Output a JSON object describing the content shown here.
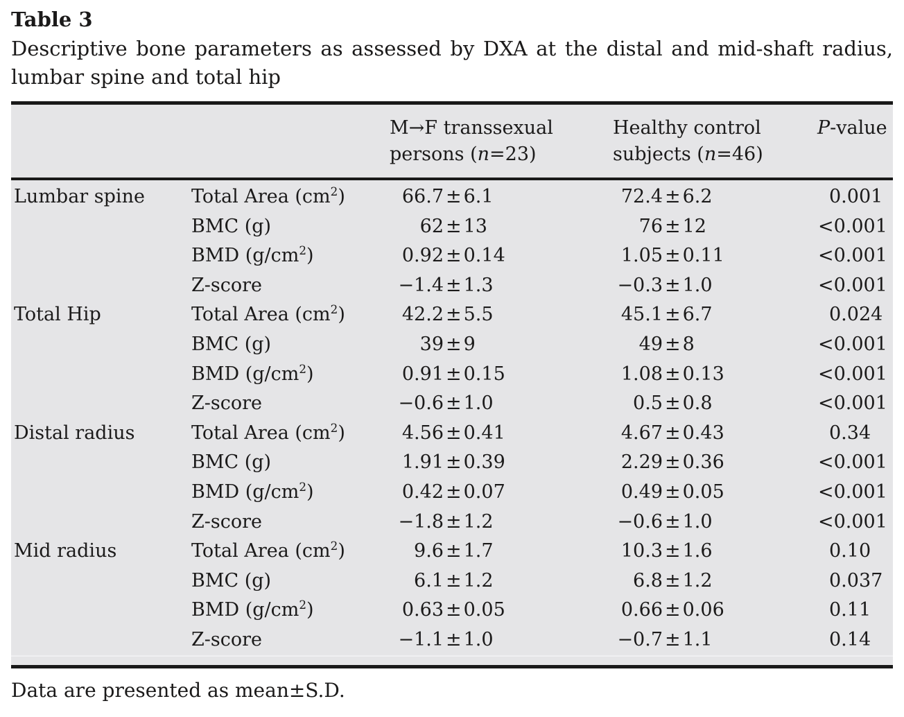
{
  "table_label": "Table 3",
  "caption_line1": "Descriptive bone parameters as assessed by DXA at the distal and mid-shaft radius,",
  "caption_line2": "lumbar spine and total hip",
  "header": {
    "mf_line1": "M→F transsexual",
    "mf_line2_pre": "persons (",
    "mf_n": "n",
    "mf_line2_post": "=23)",
    "hc_line1": "Healthy control",
    "hc_line2_pre": "subjects (",
    "hc_n": "n",
    "hc_line2_post": "=46)",
    "p_italic": "P",
    "p_rest": "-value"
  },
  "rows": [
    {
      "site": "Lumbar spine",
      "param_pre": "Total Area (cm",
      "param_sup": "2",
      "param_post": ")",
      "mf": "66.7±6.1",
      "hc": "72.4±6.2",
      "p": "0.001"
    },
    {
      "site": "",
      "param_pre": "BMC (g)",
      "mf": "62±13",
      "hc": "76±12",
      "p": "<0.001"
    },
    {
      "site": "",
      "param_pre": "BMD (g/cm",
      "param_sup": "2",
      "param_post": ")",
      "mf": "0.92±0.14",
      "hc": "1.05±0.11",
      "p": "<0.001"
    },
    {
      "site": "",
      "param_pre": "Z-score",
      "mf": "−1.4±1.3",
      "hc": "−0.3±1.0",
      "p": "<0.001"
    },
    {
      "site": "Total Hip",
      "param_pre": "Total Area (cm",
      "param_sup": "2",
      "param_post": ")",
      "mf": "42.2±5.5",
      "hc": "45.1±6.7",
      "p": "0.024"
    },
    {
      "site": "",
      "param_pre": "BMC (g)",
      "mf": "39±9",
      "hc": "49±8",
      "p": "<0.001"
    },
    {
      "site": "",
      "param_pre": "BMD (g/cm",
      "param_sup": "2",
      "param_post": ")",
      "mf": "0.91±0.15",
      "hc": "1.08±0.13",
      "p": "<0.001"
    },
    {
      "site": "",
      "param_pre": "Z-score",
      "mf": "−0.6±1.0",
      "hc": "0.5±0.8",
      "p": "<0.001"
    },
    {
      "site": "Distal radius",
      "param_pre": "Total Area (cm",
      "param_sup": "2",
      "param_post": ")",
      "mf": "4.56±0.41",
      "hc": "4.67±0.43",
      "p": "0.34"
    },
    {
      "site": "",
      "param_pre": "BMC (g)",
      "mf": "1.91±0.39",
      "hc": "2.29±0.36",
      "p": "<0.001"
    },
    {
      "site": "",
      "param_pre": "BMD (g/cm",
      "param_sup": "2",
      "param_post": ")",
      "mf": "0.42±0.07",
      "hc": "0.49±0.05",
      "p": "<0.001"
    },
    {
      "site": "",
      "param_pre": "Z-score",
      "mf": "−1.8±1.2",
      "hc": "−0.6±1.0",
      "p": "<0.001"
    },
    {
      "site": "Mid radius",
      "param_pre": "Total Area (cm",
      "param_sup": "2",
      "param_post": ")",
      "mf": "9.6±1.7",
      "hc": "10.3±1.6",
      "p": "0.10"
    },
    {
      "site": "",
      "param_pre": "BMC (g)",
      "mf": "6.1±1.2",
      "hc": "6.8±1.2",
      "p": "0.037"
    },
    {
      "site": "",
      "param_pre": "BMD (g/cm",
      "param_sup": "2",
      "param_post": ")",
      "mf": "0.63±0.05",
      "hc": "0.66±0.06",
      "p": "0.11"
    },
    {
      "site": "",
      "param_pre": "Z-score",
      "mf": "−1.1±1.0",
      "hc": "−0.7±1.1",
      "p": "0.14"
    }
  ],
  "footnote": "Data are presented as mean±S.D."
}
